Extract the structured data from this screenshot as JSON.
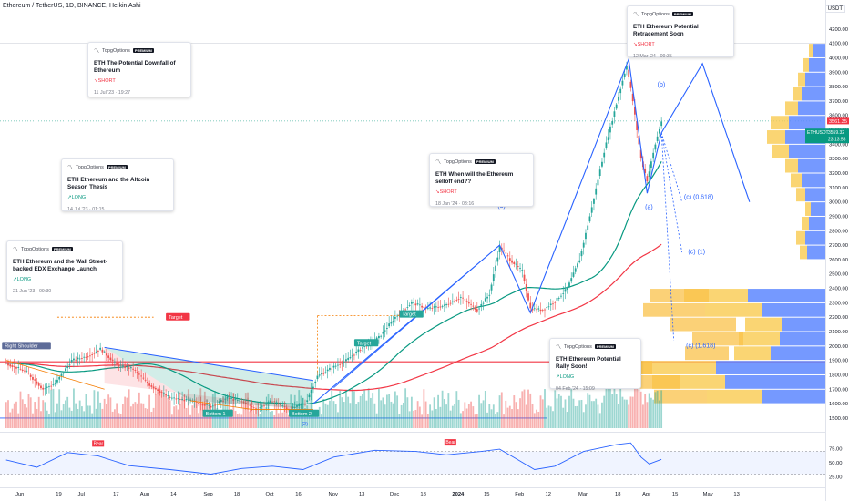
{
  "header": {
    "title": "Ethereum / TetherUS, 1D, BINANCE, Heikin Ashi"
  },
  "currency": "USDT",
  "price_badges": {
    "symbol": "ETHUSDT",
    "last": "3561.35",
    "price": "3559.32",
    "countdown": "23:13:58"
  },
  "colors": {
    "up": "#26a69a",
    "down": "#ef5350",
    "blue": "#2962ff",
    "green": "#089981",
    "red": "#f23645"
  },
  "ideas": [
    {
      "author": "TopgOptions",
      "badge": "PREMIUM",
      "title": "ETH The Potential Downfall of Ethereum",
      "direction": "SHORT",
      "date": "11 Jul '23 · 19:27"
    },
    {
      "author": "TopgOptions",
      "badge": "PREMIUM",
      "title": "ETH Ethereum and the Altcoin Season Thesis",
      "direction": "LONG",
      "date": "14 Jul '23 · 01:15"
    },
    {
      "author": "TopgOptions",
      "badge": "PREMIUM",
      "title": "ETH Ethereum and the Wall Street-backed EDX Exchange Launch",
      "direction": "LONG",
      "date": "21 Jun '23 · 09:30"
    },
    {
      "author": "TopgOptions",
      "badge": "PREMIUM",
      "title": "ETH When will the Ethereum selloff end??",
      "direction": "SHORT",
      "date": "18 Jan '24 · 03:16"
    },
    {
      "author": "TopgOptions",
      "badge": "PREMIUM",
      "title": "ETH Ethereum Potential Retracement Soon",
      "direction": "SHORT",
      "date": "12 Mar '24 · 09:35"
    },
    {
      "author": "TopgOptions",
      "badge": "PREMIUM",
      "title": "ETH Ethereum Potential Rally Soon!",
      "direction": "LONG",
      "date": "04 Feb '24 · 15:09"
    }
  ],
  "chart_data": {
    "type": "candlestick",
    "title": "Ethereum / TetherUS, 1D, BINANCE, Heikin Ashi",
    "x_ticks": [
      "Jun",
      "19",
      "Jul",
      "17",
      "Aug",
      "14",
      "Sep",
      "18",
      "Oct",
      "16",
      "Nov",
      "13",
      "Dec",
      "18",
      "2024",
      "15",
      "Feb",
      "12",
      "Mar",
      "18",
      "Apr",
      "15",
      "May",
      "13"
    ],
    "y_ticks": [
      1500,
      1600,
      1700,
      1800,
      1900,
      2000,
      2100,
      2200,
      2300,
      2400,
      2500,
      2600,
      2700,
      2800,
      2900,
      3000,
      3100,
      3200,
      3300,
      3400,
      3500,
      3600,
      3700,
      3800,
      3900,
      4000,
      4100,
      4200
    ],
    "ylim": [
      1430,
      4300
    ],
    "price_path": [
      {
        "d": 0,
        "p": 1880
      },
      {
        "d": 10,
        "p": 1820
      },
      {
        "d": 18,
        "p": 1700
      },
      {
        "d": 24,
        "p": 1740
      },
      {
        "d": 32,
        "p": 1900
      },
      {
        "d": 40,
        "p": 1930
      },
      {
        "d": 46,
        "p": 1980
      },
      {
        "d": 54,
        "p": 1870
      },
      {
        "d": 62,
        "p": 1840
      },
      {
        "d": 70,
        "p": 1730
      },
      {
        "d": 80,
        "p": 1640
      },
      {
        "d": 90,
        "p": 1620
      },
      {
        "d": 100,
        "p": 1580
      },
      {
        "d": 108,
        "p": 1640
      },
      {
        "d": 116,
        "p": 1610
      },
      {
        "d": 122,
        "p": 1560
      },
      {
        "d": 130,
        "p": 1620
      },
      {
        "d": 138,
        "p": 1560
      },
      {
        "d": 146,
        "p": 1600
      },
      {
        "d": 152,
        "p": 1790
      },
      {
        "d": 158,
        "p": 1840
      },
      {
        "d": 166,
        "p": 1900
      },
      {
        "d": 174,
        "p": 1990
      },
      {
        "d": 182,
        "p": 2060
      },
      {
        "d": 190,
        "p": 2200
      },
      {
        "d": 198,
        "p": 2300
      },
      {
        "d": 206,
        "p": 2260
      },
      {
        "d": 214,
        "p": 2280
      },
      {
        "d": 222,
        "p": 2340
      },
      {
        "d": 230,
        "p": 2250
      },
      {
        "d": 236,
        "p": 2360
      },
      {
        "d": 241,
        "p": 2690
      },
      {
        "d": 246,
        "p": 2600
      },
      {
        "d": 252,
        "p": 2520
      },
      {
        "d": 256,
        "p": 2260
      },
      {
        "d": 262,
        "p": 2250
      },
      {
        "d": 268,
        "p": 2310
      },
      {
        "d": 274,
        "p": 2400
      },
      {
        "d": 280,
        "p": 2600
      },
      {
        "d": 286,
        "p": 2960
      },
      {
        "d": 292,
        "p": 3350
      },
      {
        "d": 298,
        "p": 3680
      },
      {
        "d": 303,
        "p": 3950
      },
      {
        "d": 306,
        "p": 3700
      },
      {
        "d": 310,
        "p": 3300
      },
      {
        "d": 313,
        "p": 3150
      },
      {
        "d": 317,
        "p": 3400
      },
      {
        "d": 320,
        "p": 3560
      }
    ],
    "indicators": [
      {
        "name": "EMA fast",
        "color": "#089981"
      },
      {
        "name": "EMA slow",
        "color": "#f23645"
      }
    ],
    "annotations": {
      "wave_labels": [
        "(3)",
        "(a)",
        "(b)",
        "(c) (0.618)",
        "(c) (1)",
        "(c) (1.618)"
      ],
      "pattern_labels": [
        "Right Shoulder",
        "Target",
        "Target",
        "Target",
        "Bottom 1",
        "Bottom 2",
        "(2)"
      ]
    },
    "oscillator": {
      "y_ticks": [
        "75.00",
        "50.00",
        "25.00"
      ],
      "ylim": [
        10,
        95
      ],
      "values": [
        {
          "d": 0,
          "v": 55
        },
        {
          "d": 15,
          "v": 42
        },
        {
          "d": 30,
          "v": 68
        },
        {
          "d": 45,
          "v": 62
        },
        {
          "d": 60,
          "v": 45
        },
        {
          "d": 80,
          "v": 38
        },
        {
          "d": 100,
          "v": 30
        },
        {
          "d": 115,
          "v": 40
        },
        {
          "d": 130,
          "v": 44
        },
        {
          "d": 145,
          "v": 38
        },
        {
          "d": 160,
          "v": 60
        },
        {
          "d": 180,
          "v": 72
        },
        {
          "d": 200,
          "v": 70
        },
        {
          "d": 215,
          "v": 64
        },
        {
          "d": 232,
          "v": 70
        },
        {
          "d": 241,
          "v": 74
        },
        {
          "d": 250,
          "v": 55
        },
        {
          "d": 258,
          "v": 38
        },
        {
          "d": 268,
          "v": 44
        },
        {
          "d": 282,
          "v": 70
        },
        {
          "d": 298,
          "v": 82
        },
        {
          "d": 305,
          "v": 85
        },
        {
          "d": 310,
          "v": 60
        },
        {
          "d": 314,
          "v": 48
        },
        {
          "d": 320,
          "v": 56
        }
      ],
      "labels": [
        "Bear",
        "Bear"
      ]
    }
  }
}
